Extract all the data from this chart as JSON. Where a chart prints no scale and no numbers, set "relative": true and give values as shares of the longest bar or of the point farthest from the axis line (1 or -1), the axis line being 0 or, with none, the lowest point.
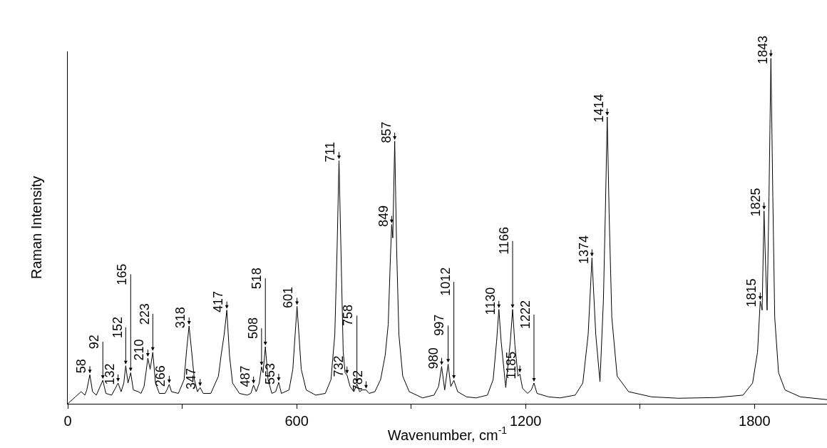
{
  "chart_data": {
    "type": "line",
    "relative": true,
    "xlabel": "Wavenumber, cm$^{-1}$",
    "ylabel": "Raman Intensity",
    "xlim": [
      0,
      1990
    ],
    "xticks": [
      0,
      {
        "value": 300,
        "label": null
      },
      600,
      {
        "value": 900,
        "label": null
      },
      1200,
      {
        "value": 1500,
        "label": null
      },
      1800
    ],
    "marker": "none",
    "line_style": "solid",
    "series": [
      {
        "color": "#000000",
        "x": [
          0,
          20,
          35,
          45,
          50,
          58,
          65,
          75,
          92,
          100,
          115,
          125,
          132,
          140,
          147,
          152,
          158,
          165,
          172,
          185,
          192,
          200,
          205,
          210,
          216,
          223,
          230,
          240,
          255,
          260,
          266,
          272,
          290,
          305,
          312,
          318,
          324,
          332,
          340,
          347,
          355,
          375,
          395,
          402,
          410,
          417,
          424,
          432,
          450,
          470,
          480,
          487,
          494,
          502,
          508,
          512,
          518,
          525,
          535,
          545,
          553,
          560,
          580,
          590,
          596,
          601,
          606,
          612,
          625,
          650,
          675,
          690,
          700,
          706,
          711,
          716,
          722,
          727,
          732,
          740,
          750,
          758,
          765,
          772,
          782,
          790,
          805,
          820,
          832,
          840,
          845,
          849,
          852,
          857,
          862,
          868,
          878,
          895,
          930,
          960,
          972,
          980,
          988,
          997,
          1004,
          1012,
          1022,
          1045,
          1070,
          1100,
          1115,
          1124,
          1130,
          1136,
          1148,
          1160,
          1166,
          1172,
          1180,
          1185,
          1192,
          1205,
          1215,
          1222,
          1230,
          1260,
          1290,
          1330,
          1350,
          1364,
          1374,
          1384,
          1395,
          1404,
          1409,
          1414,
          1419,
          1426,
          1440,
          1470,
          1530,
          1600,
          1700,
          1770,
          1795,
          1808,
          1815,
          1820,
          1825,
          1829,
          1833,
          1838,
          1843,
          1848,
          1853,
          1863,
          1880,
          1920,
          1990
        ],
        "values": [
          0.0,
          0.02,
          0.035,
          0.025,
          0.04,
          0.084,
          0.035,
          0.025,
          0.068,
          0.03,
          0.025,
          0.045,
          0.06,
          0.035,
          0.06,
          0.11,
          0.06,
          0.09,
          0.04,
          0.035,
          0.03,
          0.05,
          0.09,
          0.132,
          0.1,
          0.149,
          0.06,
          0.03,
          0.03,
          0.04,
          0.056,
          0.035,
          0.03,
          0.07,
          0.16,
          0.225,
          0.16,
          0.07,
          0.035,
          0.047,
          0.03,
          0.03,
          0.08,
          0.14,
          0.2,
          0.271,
          0.14,
          0.06,
          0.03,
          0.025,
          0.03,
          0.054,
          0.035,
          0.06,
          0.107,
          0.09,
          0.165,
          0.07,
          0.03,
          0.035,
          0.062,
          0.03,
          0.04,
          0.1,
          0.2,
          0.282,
          0.2,
          0.1,
          0.04,
          0.025,
          0.03,
          0.07,
          0.2,
          0.45,
          0.704,
          0.45,
          0.15,
          0.09,
          0.083,
          0.05,
          0.035,
          0.057,
          0.035,
          0.04,
          0.04,
          0.03,
          0.035,
          0.07,
          0.14,
          0.23,
          0.4,
          0.519,
          0.48,
          0.76,
          0.45,
          0.2,
          0.08,
          0.035,
          0.017,
          0.025,
          0.05,
          0.108,
          0.04,
          0.115,
          0.05,
          0.068,
          0.035,
          0.02,
          0.017,
          0.025,
          0.07,
          0.18,
          0.273,
          0.18,
          0.047,
          0.18,
          0.273,
          0.17,
          0.08,
          0.086,
          0.045,
          0.03,
          0.04,
          0.06,
          0.03,
          0.02,
          0.017,
          0.025,
          0.06,
          0.2,
          0.422,
          0.2,
          0.064,
          0.3,
          0.55,
          0.83,
          0.55,
          0.25,
          0.08,
          0.035,
          0.02,
          0.016,
          0.018,
          0.025,
          0.06,
          0.15,
          0.297,
          0.271,
          0.558,
          0.4,
          0.271,
          0.6,
          1.0,
          0.6,
          0.25,
          0.09,
          0.04,
          0.02,
          0.012
        ]
      }
    ],
    "annotations": [
      {
        "text": "58",
        "x": 58,
        "y": 0.084
      },
      {
        "text": "92",
        "x": 92,
        "y": 0.068
      },
      {
        "text": "132",
        "x": 132,
        "y": 0.06
      },
      {
        "text": "152",
        "x": 152,
        "y": 0.11
      },
      {
        "text": "165",
        "x": 165,
        "y": 0.09
      },
      {
        "text": "210",
        "x": 210,
        "y": 0.132
      },
      {
        "text": "223",
        "x": 223,
        "y": 0.149
      },
      {
        "text": "266",
        "x": 266,
        "y": 0.056
      },
      {
        "text": "318",
        "x": 318,
        "y": 0.225
      },
      {
        "text": "347",
        "x": 347,
        "y": 0.047
      },
      {
        "text": "417",
        "x": 417,
        "y": 0.271
      },
      {
        "text": "487",
        "x": 487,
        "y": 0.054
      },
      {
        "text": "508",
        "x": 508,
        "y": 0.107
      },
      {
        "text": "518",
        "x": 518,
        "y": 0.165
      },
      {
        "text": "553",
        "x": 553,
        "y": 0.062
      },
      {
        "text": "601",
        "x": 601,
        "y": 0.282
      },
      {
        "text": "711",
        "x": 711,
        "y": 0.704
      },
      {
        "text": "732",
        "x": 732,
        "y": 0.083
      },
      {
        "text": "758",
        "x": 758,
        "y": 0.057
      },
      {
        "text": "782",
        "x": 782,
        "y": 0.04
      },
      {
        "text": "849",
        "x": 849,
        "y": 0.519
      },
      {
        "text": "857",
        "x": 857,
        "y": 0.76
      },
      {
        "text": "980",
        "x": 980,
        "y": 0.108
      },
      {
        "text": "997",
        "x": 997,
        "y": 0.115
      },
      {
        "text": "1012",
        "x": 1012,
        "y": 0.068
      },
      {
        "text": "1130",
        "x": 1130,
        "y": 0.273
      },
      {
        "text": "1166",
        "x": 1166,
        "y": 0.273
      },
      {
        "text": "1185",
        "x": 1185,
        "y": 0.086
      },
      {
        "text": "1222",
        "x": 1222,
        "y": 0.06
      },
      {
        "text": "1374",
        "x": 1374,
        "y": 0.422
      },
      {
        "text": "1414",
        "x": 1414,
        "y": 0.83
      },
      {
        "text": "1815",
        "x": 1815,
        "y": 0.297
      },
      {
        "text": "1825",
        "x": 1825,
        "y": 0.558
      },
      {
        "text": "1843",
        "x": 1843,
        "y": 1.0
      }
    ]
  }
}
